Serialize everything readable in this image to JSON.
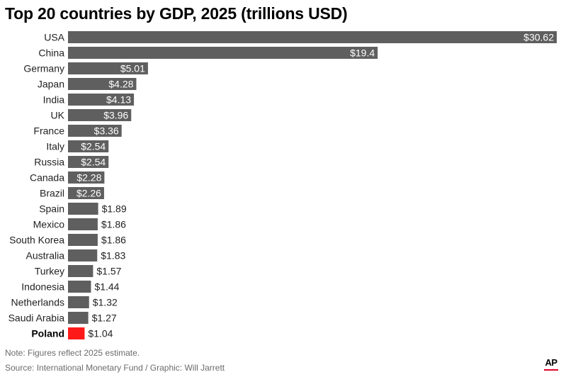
{
  "chart_data": {
    "type": "bar",
    "orientation": "horizontal",
    "title": "Top 20 countries by GDP, 2025 (trillions USD)",
    "xlabel": "",
    "ylabel": "",
    "categories": [
      "USA",
      "China",
      "Germany",
      "Japan",
      "India",
      "UK",
      "France",
      "Italy",
      "Russia",
      "Canada",
      "Brazil",
      "Spain",
      "Mexico",
      "South Korea",
      "Australia",
      "Turkey",
      "Indonesia",
      "Netherlands",
      "Saudi Arabia",
      "Poland"
    ],
    "values": [
      30.62,
      19.4,
      5.01,
      4.28,
      4.13,
      3.96,
      3.36,
      2.54,
      2.54,
      2.28,
      2.26,
      1.89,
      1.86,
      1.86,
      1.83,
      1.57,
      1.44,
      1.32,
      1.27,
      1.04
    ],
    "value_labels": [
      "$30.62",
      "$19.4",
      "$5.01",
      "$4.28",
      "$4.13",
      "$3.96",
      "$3.36",
      "$2.54",
      "$2.54",
      "$2.28",
      "$2.26",
      "$1.89",
      "$1.86",
      "$1.86",
      "$1.83",
      "$1.57",
      "$1.44",
      "$1.32",
      "$1.27",
      "$1.04"
    ],
    "highlight": "Poland",
    "xlim": [
      0,
      30.62
    ],
    "grid": false,
    "legend": "none",
    "colors": {
      "bar": "#5f5f5f",
      "highlight": "#ff1a1a",
      "label_inside": "#ffffff",
      "label_outside": "#222222"
    }
  },
  "footer": {
    "note": "Note: Figures reflect 2025 estimate.",
    "source": "Source: International Monetary Fund / Graphic: Will Jarrett",
    "logo": "AP"
  }
}
